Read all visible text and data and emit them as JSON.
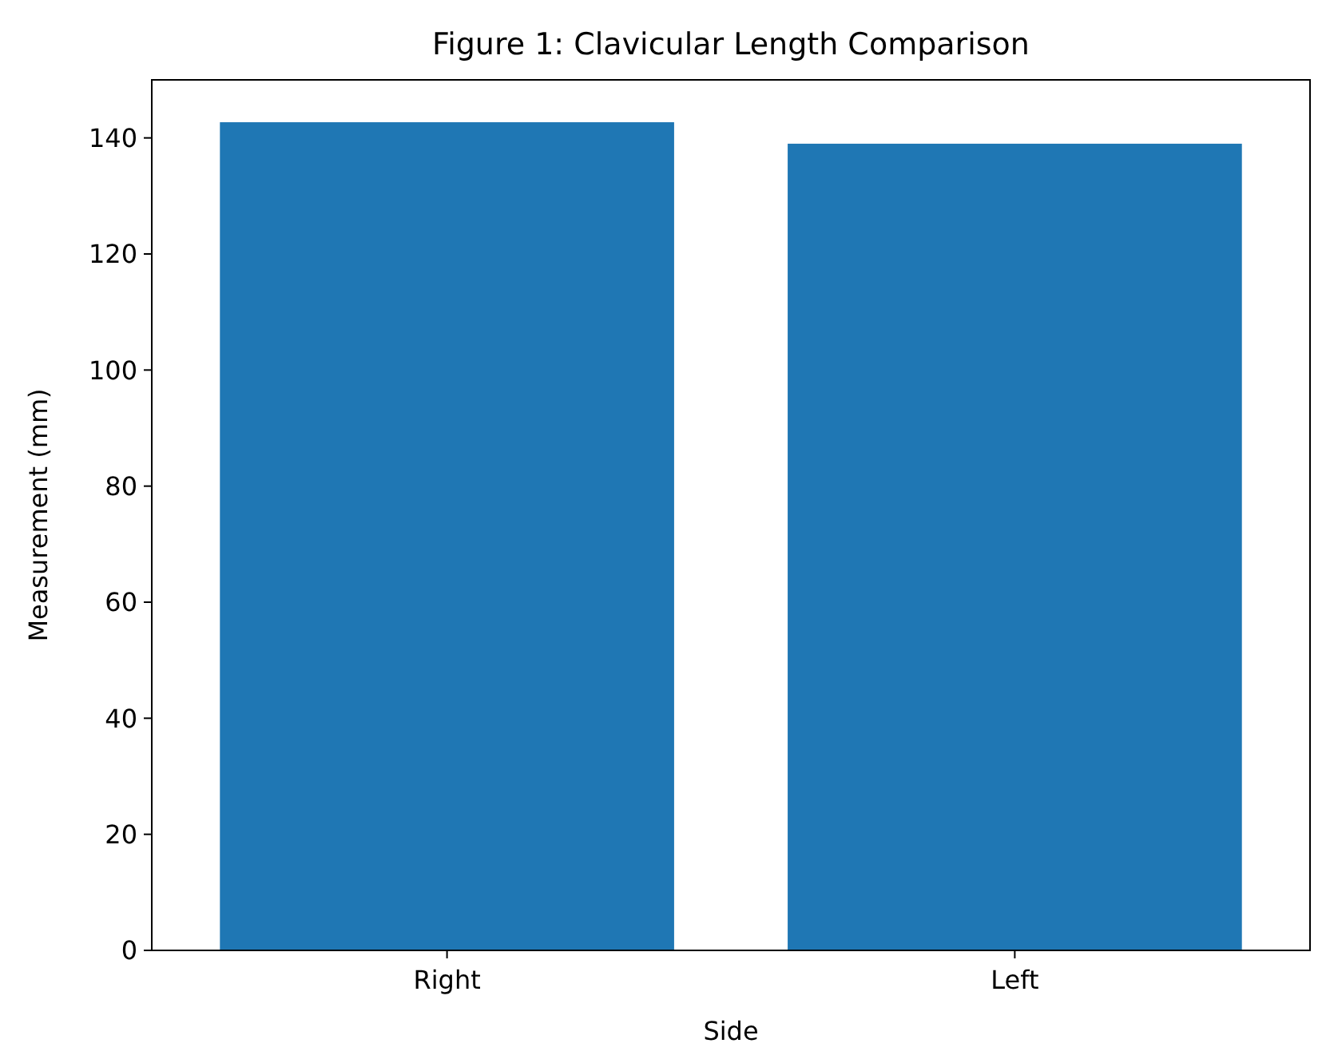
{
  "chart_data": {
    "type": "bar",
    "title": "Figure 1: Clavicular Length Comparison",
    "xlabel": "Side",
    "ylabel": "Measurement (mm)",
    "categories": [
      "Right",
      "Left"
    ],
    "values": [
      142.7,
      139
    ],
    "color": "#1f77b4",
    "ylim": [
      0,
      150
    ],
    "yticks": [
      0,
      20,
      40,
      60,
      80,
      100,
      120,
      140
    ],
    "grid": false
  }
}
